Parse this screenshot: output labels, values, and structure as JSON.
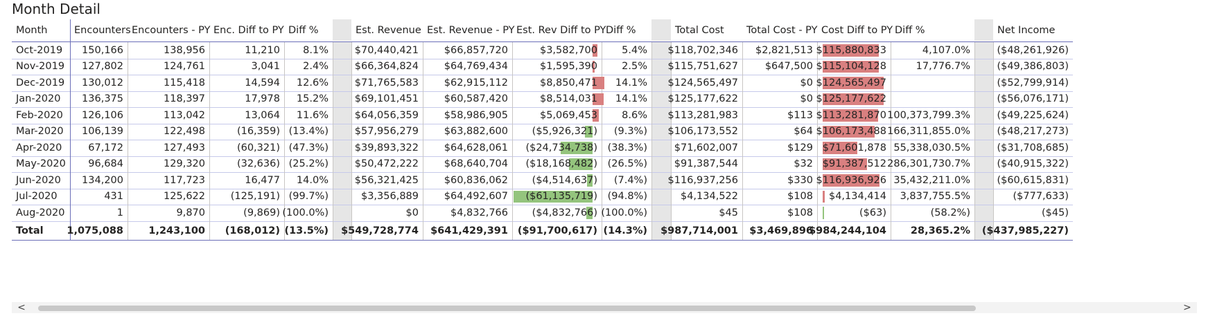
{
  "title": "Month Detail",
  "colors": {
    "positive_bar": "#d98080",
    "negative_bar": "#94c47d",
    "row_line": "#c6c9ea",
    "spacer": "#e6e6e6"
  },
  "columns": [
    "Month",
    "Encounters",
    "Encounters - PY",
    "Enc. Diff to PY",
    "Diff %",
    "",
    "Est. Revenue",
    "Est. Revenue - PY",
    "Est. Rev Diff to PY",
    "Diff %",
    "",
    "Total Cost",
    "Total Cost - PY",
    "Cost Diff to PY",
    "Diff %",
    "",
    "Net Income"
  ],
  "rows": [
    {
      "month": "Oct-2019",
      "enc": "150,166",
      "enc_py": "138,956",
      "enc_diff": "11,210",
      "enc_pct": "8.1%",
      "rev": "$70,440,421",
      "rev_py": "$66,857,720",
      "rev_diff": "$3,582,700",
      "rev_pct": "5.4%",
      "cost": "$118,702,346",
      "cost_py": "$2,821,513",
      "cost_diff": "$115,880,833",
      "cost_pct": "4,107.0%",
      "net": "($48,261,926)"
    },
    {
      "month": "Nov-2019",
      "enc": "127,802",
      "enc_py": "124,761",
      "enc_diff": "3,041",
      "enc_pct": "2.4%",
      "rev": "$66,364,824",
      "rev_py": "$64,769,434",
      "rev_diff": "$1,595,390",
      "rev_pct": "2.5%",
      "cost": "$115,751,627",
      "cost_py": "$647,500",
      "cost_diff": "$115,104,128",
      "cost_pct": "17,776.7%",
      "net": "($49,386,803)"
    },
    {
      "month": "Dec-2019",
      "enc": "130,012",
      "enc_py": "115,418",
      "enc_diff": "14,594",
      "enc_pct": "12.6%",
      "rev": "$71,765,583",
      "rev_py": "$62,915,112",
      "rev_diff": "$8,850,471",
      "rev_pct": "14.1%",
      "cost": "$124,565,497",
      "cost_py": "$0",
      "cost_diff": "$124,565,497",
      "cost_pct": "",
      "net": "($52,799,914)"
    },
    {
      "month": "Jan-2020",
      "enc": "136,375",
      "enc_py": "118,397",
      "enc_diff": "17,978",
      "enc_pct": "15.2%",
      "rev": "$69,101,451",
      "rev_py": "$60,587,420",
      "rev_diff": "$8,514,031",
      "rev_pct": "14.1%",
      "cost": "$125,177,622",
      "cost_py": "$0",
      "cost_diff": "$125,177,622",
      "cost_pct": "",
      "net": "($56,076,171)"
    },
    {
      "month": "Feb-2020",
      "enc": "126,106",
      "enc_py": "113,042",
      "enc_diff": "13,064",
      "enc_pct": "11.6%",
      "rev": "$64,056,359",
      "rev_py": "$58,986,905",
      "rev_diff": "$5,069,453",
      "rev_pct": "8.6%",
      "cost": "$113,281,983",
      "cost_py": "$113",
      "cost_diff": "$113,281,870",
      "cost_pct": "100,373,799.3%",
      "net": "($49,225,624)"
    },
    {
      "month": "Mar-2020",
      "enc": "106,139",
      "enc_py": "122,498",
      "enc_diff": "(16,359)",
      "enc_pct": "(13.4%)",
      "rev": "$57,956,279",
      "rev_py": "$63,882,600",
      "rev_diff": "($5,926,321)",
      "rev_pct": "(9.3%)",
      "cost": "$106,173,552",
      "cost_py": "$64",
      "cost_diff": "$106,173,488",
      "cost_pct": "166,311,855.0%",
      "net": "($48,217,273)"
    },
    {
      "month": "Apr-2020",
      "enc": "67,172",
      "enc_py": "127,493",
      "enc_diff": "(60,321)",
      "enc_pct": "(47.3%)",
      "rev": "$39,893,322",
      "rev_py": "$64,628,061",
      "rev_diff": "($24,734,738)",
      "rev_pct": "(38.3%)",
      "cost": "$71,602,007",
      "cost_py": "$129",
      "cost_diff": "$71,601,878",
      "cost_pct": "55,338,030.5%",
      "net": "($31,708,685)"
    },
    {
      "month": "May-2020",
      "enc": "96,684",
      "enc_py": "129,320",
      "enc_diff": "(32,636)",
      "enc_pct": "(25.2%)",
      "rev": "$50,472,222",
      "rev_py": "$68,640,704",
      "rev_diff": "($18,168,482)",
      "rev_pct": "(26.5%)",
      "cost": "$91,387,544",
      "cost_py": "$32",
      "cost_diff": "$91,387,512",
      "cost_pct": "286,301,730.7%",
      "net": "($40,915,322)"
    },
    {
      "month": "Jun-2020",
      "enc": "134,200",
      "enc_py": "117,723",
      "enc_diff": "16,477",
      "enc_pct": "14.0%",
      "rev": "$56,321,425",
      "rev_py": "$60,836,062",
      "rev_diff": "($4,514,637)",
      "rev_pct": "(7.4%)",
      "cost": "$116,937,256",
      "cost_py": "$330",
      "cost_diff": "$116,936,926",
      "cost_pct": "35,432,211.0%",
      "net": "($60,615,831)"
    },
    {
      "month": "Jul-2020",
      "enc": "431",
      "enc_py": "125,622",
      "enc_diff": "(125,191)",
      "enc_pct": "(99.7%)",
      "rev": "$3,356,889",
      "rev_py": "$64,492,607",
      "rev_diff": "($61,135,719)",
      "rev_pct": "(94.8%)",
      "cost": "$4,134,522",
      "cost_py": "$108",
      "cost_diff": "$4,134,414",
      "cost_pct": "3,837,755.5%",
      "net": "($777,633)"
    },
    {
      "month": "Aug-2020",
      "enc": "1",
      "enc_py": "9,870",
      "enc_diff": "(9,869)",
      "enc_pct": "(100.0%)",
      "rev": "$0",
      "rev_py": "$4,832,766",
      "rev_diff": "($4,832,766)",
      "rev_pct": "(100.0%)",
      "cost": "$45",
      "cost_py": "$108",
      "cost_diff": "($63)",
      "cost_pct": "(58.2%)",
      "net": "($45)"
    }
  ],
  "total": {
    "month": "Total",
    "enc": "1,075,088",
    "enc_py": "1,243,100",
    "enc_diff": "(168,012)",
    "enc_pct": "(13.5%)",
    "rev": "$549,728,774",
    "rev_py": "$641,429,391",
    "rev_diff": "($91,700,617)",
    "rev_pct": "(14.3%)",
    "cost": "$987,714,001",
    "cost_py": "$3,469,896",
    "cost_diff": "$984,244,104",
    "cost_pct": "28,365.2%",
    "net": "($437,985,227)"
  },
  "bars": {
    "rev_diff": [
      3582700,
      1595390,
      8850471,
      8514031,
      5069453,
      -5926321,
      -24734738,
      -18168482,
      -4514637,
      -61135719,
      -4832766
    ],
    "cost_diff": [
      115880833,
      115104128,
      124565497,
      125177622,
      113281870,
      106173488,
      71601878,
      91387512,
      116936926,
      4134414,
      -63
    ]
  },
  "scrollbar": {
    "left_arrow": "<",
    "right_arrow": ">"
  }
}
